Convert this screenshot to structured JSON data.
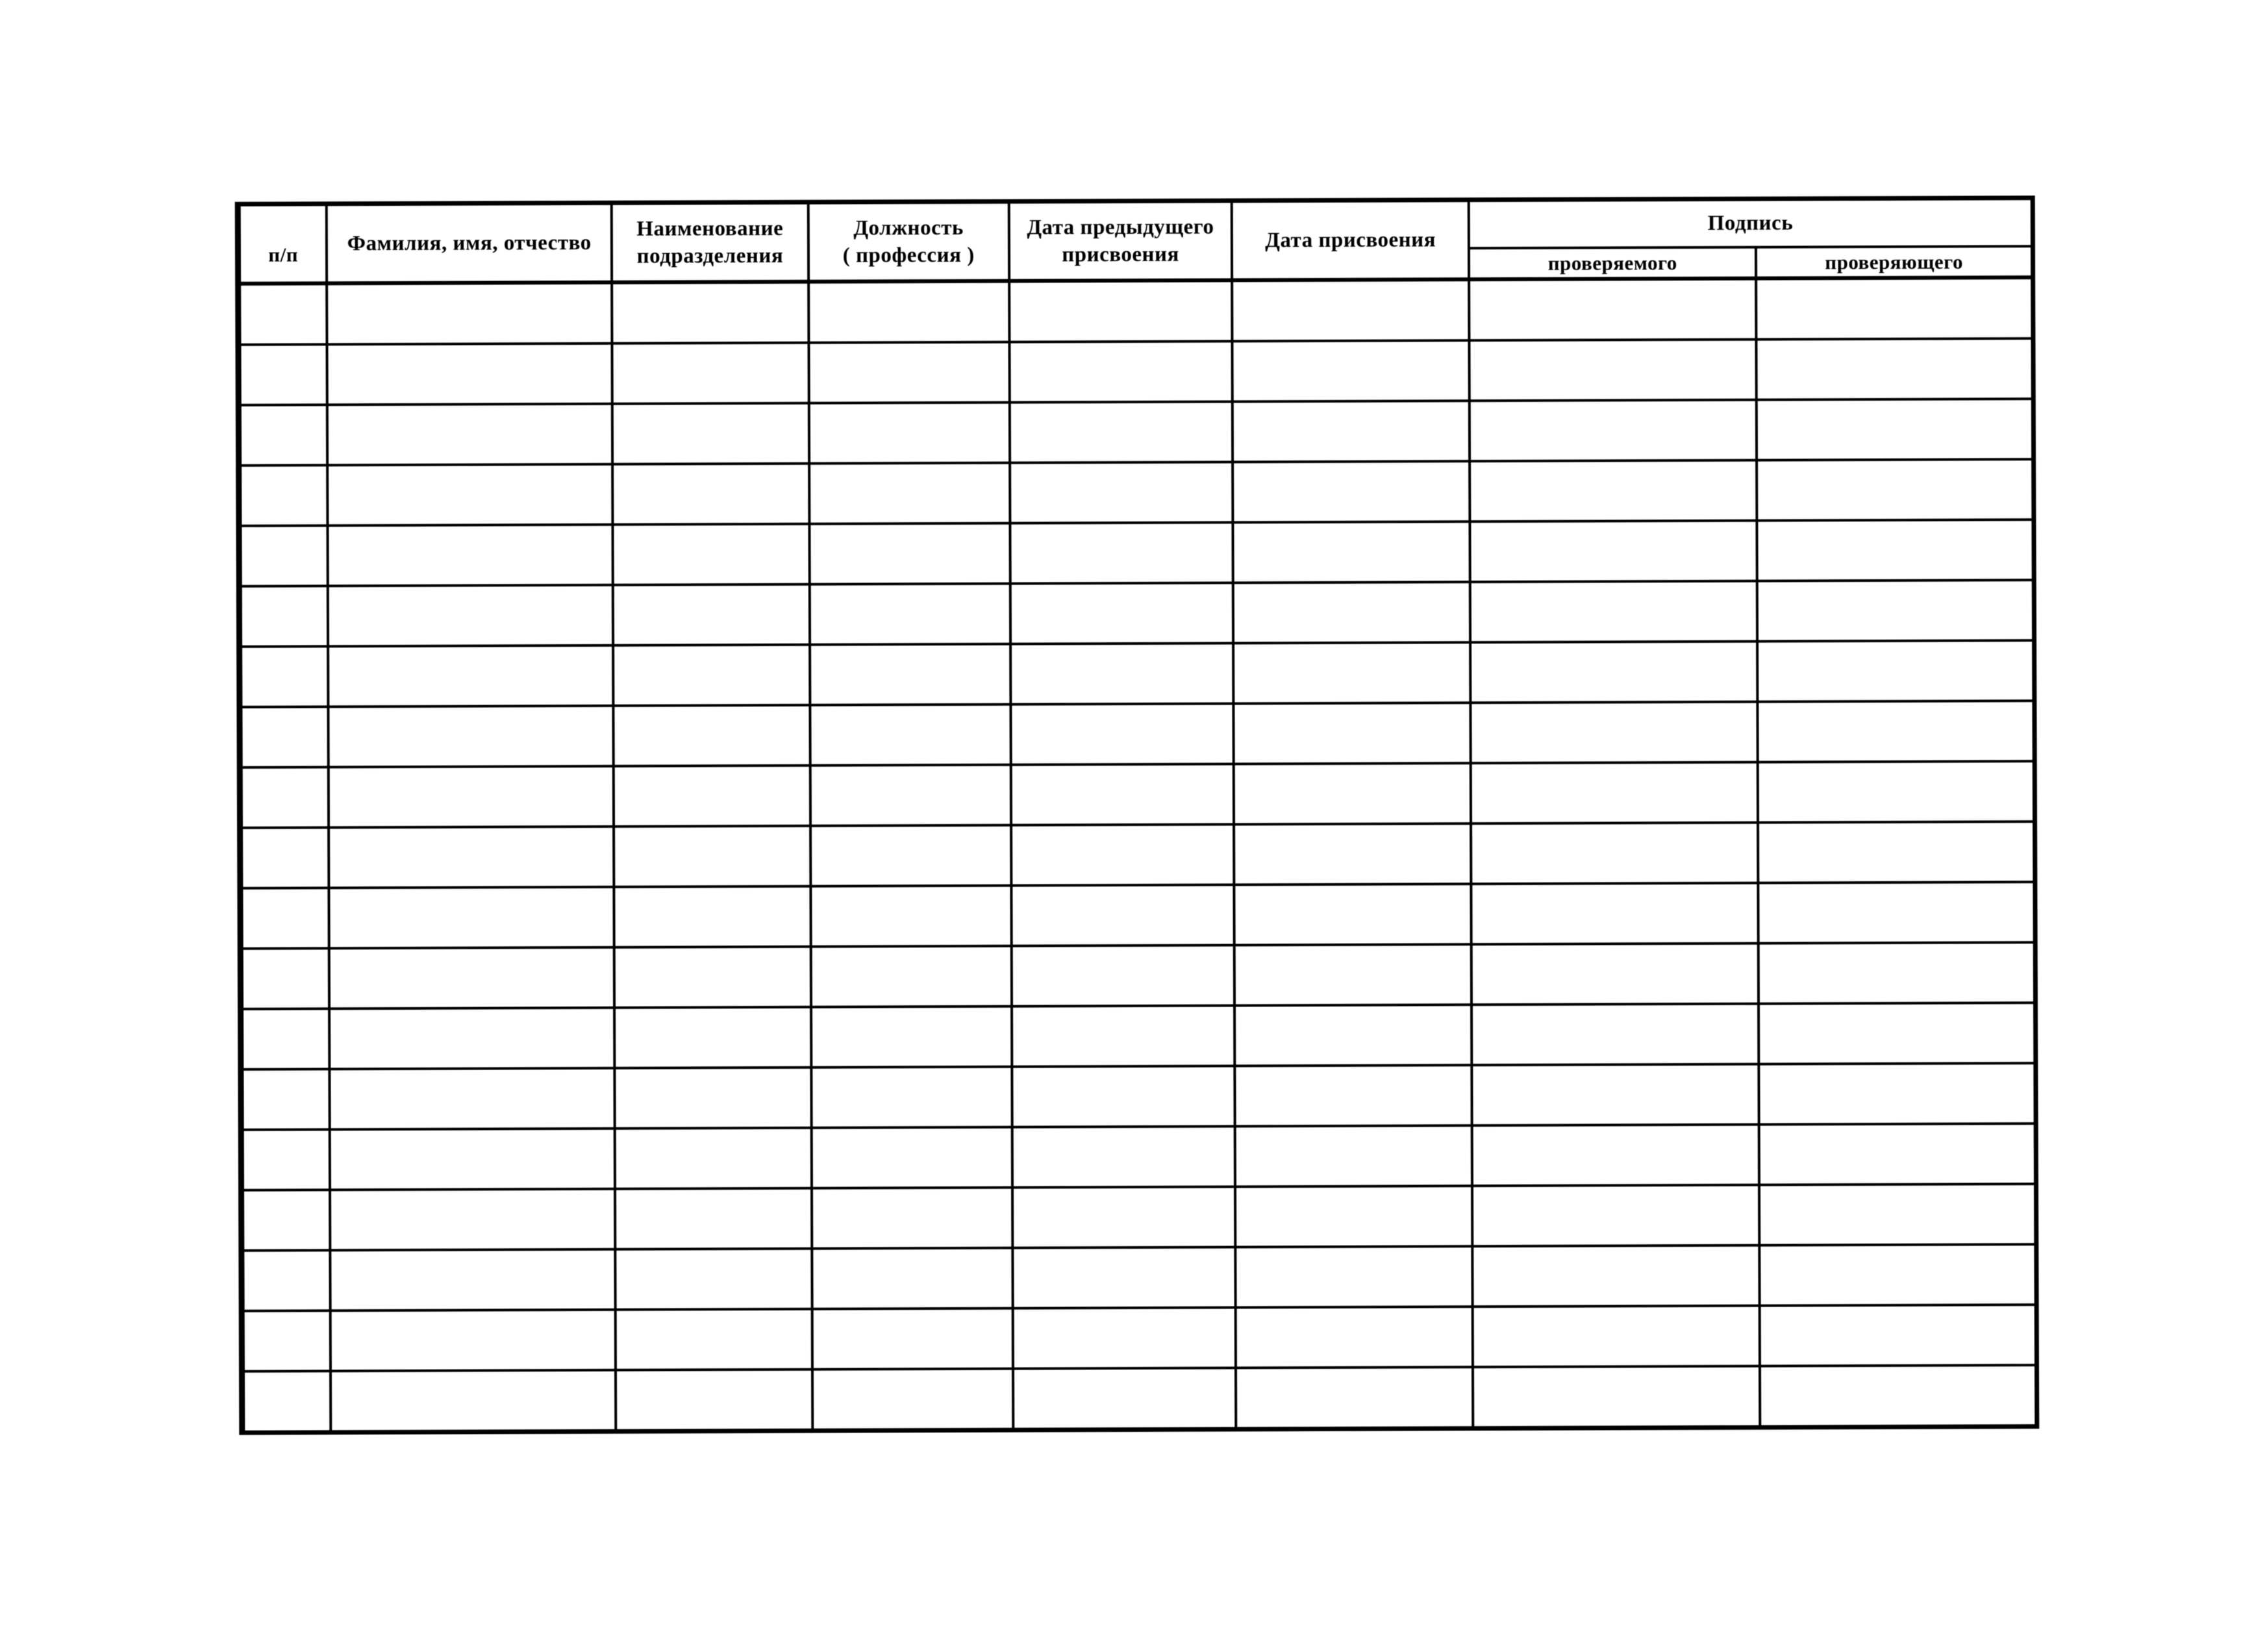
{
  "page": {
    "paper_color": "#ffffff",
    "line_color": "#121212",
    "text_color": "#0b0b0b"
  },
  "table": {
    "signature_group_label": "Подпись",
    "columns": [
      {
        "id": "num",
        "label": "п/п",
        "width_pct": 4.95
      },
      {
        "id": "full-name",
        "label": "Фамилия, имя, отчество",
        "width_pct": 15.88
      },
      {
        "id": "department",
        "label": "Наименование подразделения",
        "width_pct": 10.94
      },
      {
        "id": "position",
        "label": "Должность ( профессия )",
        "width_pct": 11.19
      },
      {
        "id": "previous-assignment-date",
        "label": "Дата предыдущего присвоения",
        "width_pct": 12.42
      },
      {
        "id": "assignment-date",
        "label": "Дата присвоения",
        "width_pct": 13.21
      },
      {
        "id": "signature-examinee",
        "label": "проверяемого",
        "width_pct": 15.99,
        "group": "Подпись"
      },
      {
        "id": "signature-examiner",
        "label": "проверяющего",
        "width_pct": 15.42,
        "group": "Подпись"
      }
    ],
    "empty_row_count": 19,
    "cells_per_row": 8
  }
}
